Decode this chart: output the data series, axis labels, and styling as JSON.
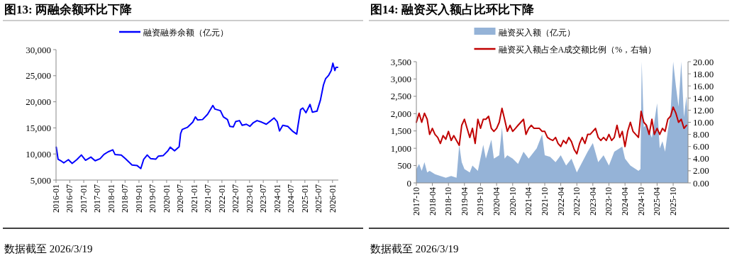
{
  "chart_data": [
    {
      "type": "line",
      "title": "图13:  两融余额环比下降",
      "legend": "top",
      "grid": false,
      "xlim": [
        "2016-01-01",
        "2026-03-19"
      ],
      "xticks": [
        "2016-01",
        "2016-07",
        "2017-01",
        "2017-07",
        "2018-01",
        "2018-07",
        "2019-01",
        "2019-07",
        "2020-01",
        "2020-07",
        "2021-01",
        "2021-07",
        "2022-01",
        "2022-07",
        "2023-01",
        "2023-07",
        "2024-01",
        "2024-07",
        "2025-01",
        "2025-07",
        "2026-01"
      ],
      "ylim": [
        5000,
        30000
      ],
      "yticks": [
        {
          "value": 5000,
          "label": "5,000"
        },
        {
          "value": 10000,
          "label": "10,000"
        },
        {
          "value": 15000,
          "label": "15,000"
        },
        {
          "value": 20000,
          "label": "20,000"
        },
        {
          "value": 25000,
          "label": "25,000"
        },
        {
          "value": 30000,
          "label": "30,000"
        }
      ],
      "series": [
        {
          "name": "融资融券余额（亿元）",
          "color": "#0000ff",
          "x": [
            "2016-01-04",
            "2016-01-28",
            "2016-03-05",
            "2016-04-12",
            "2016-06-12",
            "2016-08-01",
            "2016-10-01",
            "2016-12-01",
            "2017-01-25",
            "2017-04-05",
            "2017-06-01",
            "2017-08-05",
            "2017-09-25",
            "2017-11-18",
            "2018-01-20",
            "2018-02-18",
            "2018-05-12",
            "2018-07-05",
            "2018-10-01",
            "2018-12-05",
            "2019-01-25",
            "2019-03-05",
            "2019-04-20",
            "2019-06-05",
            "2019-08-10",
            "2019-09-15",
            "2019-11-18",
            "2020-01-18",
            "2020-02-18",
            "2020-04-15",
            "2020-06-15",
            "2020-07-04",
            "2020-07-25",
            "2020-10-01",
            "2020-12-12",
            "2021-01-15",
            "2021-02-15",
            "2021-04-20",
            "2021-06-25",
            "2021-09-03",
            "2021-10-01",
            "2021-12-12",
            "2022-01-20",
            "2022-03-15",
            "2022-04-15",
            "2022-06-01",
            "2022-07-01",
            "2022-08-20",
            "2022-09-25",
            "2022-11-20",
            "2023-01-05",
            "2023-02-20",
            "2023-04-10",
            "2023-06-10",
            "2023-08-10",
            "2023-10-10",
            "2023-11-20",
            "2024-01-01",
            "2024-02-01",
            "2024-03-15",
            "2024-05-20",
            "2024-07-20",
            "2024-09-15",
            "2024-10-05",
            "2024-11-05",
            "2024-12-05",
            "2025-01-15",
            "2025-03-10",
            "2025-04-10",
            "2025-06-10",
            "2025-07-25",
            "2025-09-03",
            "2025-10-01",
            "2025-11-12",
            "2025-12-15",
            "2026-01-06",
            "2026-02-01",
            "2026-02-15",
            "2026-03-10"
          ],
          "values": [
            11300,
            9000,
            8700,
            8300,
            8900,
            8200,
            8900,
            9800,
            8800,
            9400,
            8700,
            9100,
            9900,
            10400,
            10800,
            9900,
            9800,
            9100,
            7900,
            7800,
            7200,
            9000,
            9800,
            9100,
            9000,
            9600,
            9700,
            10600,
            11300,
            10600,
            11400,
            13900,
            14700,
            15100,
            16100,
            17100,
            16500,
            16600,
            17600,
            19300,
            18600,
            18300,
            17100,
            16600,
            15300,
            15200,
            16200,
            16400,
            15500,
            15700,
            15300,
            16000,
            16400,
            16100,
            15700,
            16400,
            16900,
            16200,
            14400,
            15500,
            15300,
            14400,
            13800,
            15700,
            18500,
            18800,
            17900,
            19500,
            18000,
            18200,
            20300,
            23200,
            24400,
            25100,
            26000,
            27400,
            26000,
            26600,
            26600
          ]
        }
      ],
      "annotations": [
        "数据截至 2026/3/19"
      ]
    },
    {
      "type": "area",
      "title": "图14:  融资买入额占比环比下降",
      "legend": "top",
      "grid": false,
      "xlim": [
        "2017-10-01",
        "2026-03-19"
      ],
      "xticks": [
        "2017-10",
        "2018-04",
        "2018-10",
        "2019-04",
        "2019-10",
        "2020-04",
        "2020-10",
        "2021-04",
        "2021-10",
        "2022-04",
        "2022-10",
        "2023-04",
        "2023-10",
        "2024-04",
        "2024-10",
        "2025-04",
        "2025-10"
      ],
      "ylim": [
        0,
        3500
      ],
      "yticks": [
        0,
        500,
        {
          "value": 1000,
          "label": "1,000"
        },
        {
          "value": 1500,
          "label": "1,500"
        },
        {
          "value": 2000,
          "label": "2,000"
        },
        {
          "value": 2500,
          "label": "2,500"
        },
        {
          "value": 3000,
          "label": "3,000"
        },
        {
          "value": 3500,
          "label": "3,500"
        }
      ],
      "y2lim": [
        0,
        20
      ],
      "y2ticks": [
        {
          "value": 0,
          "label": "0.00"
        },
        {
          "value": 2,
          "label": "2.00"
        },
        {
          "value": 4,
          "label": "4.00"
        },
        {
          "value": 6,
          "label": "6.00"
        },
        {
          "value": 8,
          "label": "8.00"
        },
        {
          "value": 10,
          "label": "10.00"
        },
        {
          "value": 12,
          "label": "12.00"
        },
        {
          "value": 14,
          "label": "14.00"
        },
        {
          "value": 16,
          "label": "16.00"
        },
        {
          "value": 18,
          "label": "18.00"
        },
        {
          "value": 20,
          "label": "20.00"
        }
      ],
      "series": [
        {
          "name": "融资买入额（亿元）",
          "type": "area",
          "color": "#95b3d7",
          "x": [
            "2017-10",
            "2017-11",
            "2017-12",
            "2018-01",
            "2018-02",
            "2018-03",
            "2018-05",
            "2018-07",
            "2018-09",
            "2018-11",
            "2019-01",
            "2019-02",
            "2019-03",
            "2019-04",
            "2019-06",
            "2019-07",
            "2019-09",
            "2019-11",
            "2019-12",
            "2020-02",
            "2020-03",
            "2020-05",
            "2020-06",
            "2020-07",
            "2020-08",
            "2020-10",
            "2020-12",
            "2021-02",
            "2021-04",
            "2021-07",
            "2021-09",
            "2021-10",
            "2021-12",
            "2022-02",
            "2022-04",
            "2022-06",
            "2022-08",
            "2022-10",
            "2022-12",
            "2023-02",
            "2023-04",
            "2023-06",
            "2023-08",
            "2023-10",
            "2023-12",
            "2024-03",
            "2024-04",
            "2024-06",
            "2024-08",
            "2024-09",
            "2024-09-24",
            "2024-10-08",
            "2024-11",
            "2024-12",
            "2025-02",
            "2025-04",
            "2025-05",
            "2025-06",
            "2025-07",
            "2025-08",
            "2025-09",
            "2025-10",
            "2025-11",
            "2025-12",
            "2026-01",
            "2026-02",
            "2026-03-01",
            "2026-03-19"
          ],
          "values": [
            400,
            550,
            350,
            600,
            300,
            350,
            250,
            200,
            150,
            200,
            150,
            1100,
            600,
            400,
            300,
            500,
            350,
            1100,
            700,
            1250,
            700,
            800,
            1600,
            700,
            800,
            700,
            550,
            900,
            700,
            1000,
            1400,
            800,
            750,
            600,
            800,
            500,
            700,
            300,
            600,
            900,
            1150,
            600,
            800,
            500,
            900,
            1050,
            700,
            500,
            400,
            350,
            400,
            3500,
            1600,
            1700,
            1300,
            2300,
            1000,
            1200,
            900,
            1500,
            2000,
            3500,
            2800,
            2200,
            3500,
            1900,
            2500,
            1700
          ]
        },
        {
          "name": "融资买入额占全A成交额比例（%，右轴）",
          "type": "line",
          "axis": "y2",
          "color": "#c00000",
          "x": [
            "2017-10",
            "2017-11",
            "2017-12",
            "2018-01",
            "2018-02",
            "2018-03",
            "2018-04",
            "2018-05",
            "2018-06",
            "2018-07",
            "2018-08",
            "2018-09",
            "2018-10",
            "2018-11",
            "2018-12",
            "2019-01",
            "2019-02",
            "2019-03",
            "2019-04",
            "2019-05",
            "2019-06",
            "2019-07",
            "2019-08",
            "2019-09",
            "2019-10",
            "2019-11",
            "2019-12",
            "2020-01",
            "2020-02",
            "2020-03",
            "2020-04",
            "2020-05",
            "2020-06",
            "2020-07",
            "2020-08",
            "2020-09",
            "2020-10",
            "2020-11",
            "2020-12",
            "2021-01",
            "2021-02",
            "2021-03",
            "2021-04",
            "2021-05",
            "2021-06",
            "2021-07",
            "2021-08",
            "2021-09",
            "2021-10",
            "2021-11",
            "2021-12",
            "2022-01",
            "2022-02",
            "2022-03",
            "2022-04",
            "2022-05",
            "2022-06",
            "2022-07",
            "2022-08",
            "2022-09",
            "2022-10",
            "2022-11",
            "2022-12",
            "2023-01",
            "2023-02",
            "2023-03",
            "2023-04",
            "2023-05",
            "2023-06",
            "2023-07",
            "2023-08",
            "2023-09",
            "2023-10",
            "2023-11",
            "2023-12",
            "2024-01",
            "2024-02",
            "2024-03",
            "2024-04",
            "2024-05",
            "2024-06",
            "2024-07",
            "2024-08",
            "2024-09",
            "2024-10",
            "2024-11",
            "2024-12",
            "2025-01",
            "2025-02",
            "2025-03",
            "2025-04",
            "2025-05",
            "2025-06",
            "2025-07",
            "2025-08",
            "2025-09",
            "2025-10",
            "2025-11",
            "2025-12",
            "2026-01",
            "2026-02",
            "2026-03"
          ],
          "values": [
            10.0,
            11.5,
            10.0,
            11.5,
            10.5,
            8.0,
            9.0,
            8.0,
            7.5,
            6.5,
            7.8,
            7.2,
            8.5,
            7.0,
            7.8,
            7.0,
            6.2,
            9.5,
            10.5,
            9.0,
            7.5,
            9.0,
            6.5,
            10.5,
            9.0,
            10.5,
            10.5,
            11.0,
            9.0,
            8.5,
            9.0,
            10.0,
            12.3,
            10.5,
            8.5,
            9.5,
            8.5,
            9.0,
            9.5,
            10.0,
            10.5,
            8.0,
            9.0,
            9.5,
            9.0,
            9.0,
            9.0,
            8.5,
            8.5,
            7.5,
            7.2,
            7.0,
            7.5,
            6.5,
            6.0,
            7.0,
            6.5,
            7.5,
            6.8,
            5.5,
            4.8,
            6.5,
            7.5,
            6.5,
            8.0,
            8.0,
            8.5,
            9.0,
            7.5,
            7.0,
            7.5,
            7.0,
            8.0,
            7.0,
            7.5,
            9.5,
            7.5,
            8.5,
            6.0,
            8.5,
            10.0,
            8.5,
            8.0,
            7.5,
            11.8,
            10.0,
            9.5,
            8.0,
            10.5,
            8.0,
            9.0,
            8.0,
            9.0,
            8.5,
            10.5,
            11.0,
            12.5,
            11.5,
            10.0,
            10.5,
            9.0,
            9.5
          ]
        }
      ],
      "annotations": [
        "数据截至 2026/3/19"
      ]
    }
  ]
}
